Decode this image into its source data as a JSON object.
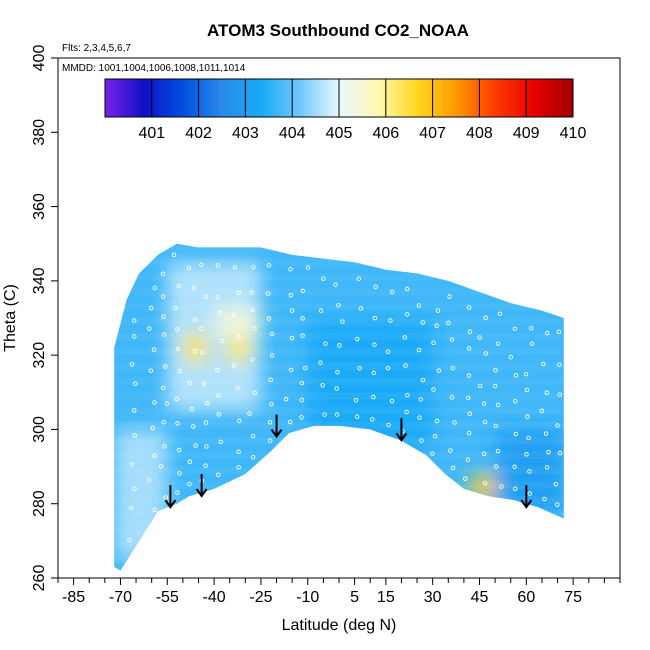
{
  "chart_data": {
    "type": "heatmap",
    "title": "ATOM3 Southbound CO2_NOAA",
    "annotations": [
      "Flts: 2,3,4,5,6,7",
      "MMDD: 1001,1004,1006,1008,1011,1014"
    ],
    "xlabel": "Latitude (deg N)",
    "ylabel": "Theta (C)",
    "xlim": [
      -90,
      90
    ],
    "ylim": [
      260,
      400
    ],
    "x_ticks": [
      -85,
      -70,
      -55,
      -40,
      -25,
      -10,
      5,
      15,
      30,
      45,
      60,
      75
    ],
    "y_ticks": [
      260,
      280,
      300,
      320,
      340,
      360,
      380,
      400
    ],
    "grid": false,
    "colorbar": {
      "position": "top",
      "range": [
        400,
        410
      ],
      "ticks": [
        401,
        402,
        403,
        404,
        405,
        406,
        407,
        408,
        409,
        410
      ],
      "colors": [
        "#7a22e8",
        "#1010c8",
        "#0050e0",
        "#2a8ae8",
        "#18aaf8",
        "#70c8f8",
        "#e8f8ff",
        "#fff8b0",
        "#ffd820",
        "#ff9a00",
        "#ff3a00",
        "#e80000",
        "#a00000"
      ]
    },
    "upper_boundary": [
      [
        -72,
        322
      ],
      [
        -68,
        335
      ],
      [
        -64,
        342
      ],
      [
        -58,
        347
      ],
      [
        -52,
        350
      ],
      [
        -45,
        349
      ],
      [
        -35,
        349
      ],
      [
        -25,
        349
      ],
      [
        -15,
        347
      ],
      [
        -5,
        346
      ],
      [
        5,
        345
      ],
      [
        15,
        343
      ],
      [
        25,
        342
      ],
      [
        35,
        340
      ],
      [
        45,
        337
      ],
      [
        55,
        334
      ],
      [
        65,
        332
      ],
      [
        72,
        330
      ]
    ],
    "lower_boundary": [
      [
        -72,
        263
      ],
      [
        -70,
        262
      ],
      [
        -64,
        270
      ],
      [
        -58,
        278
      ],
      [
        -52,
        280
      ],
      [
        -48,
        282
      ],
      [
        -40,
        284
      ],
      [
        -30,
        288
      ],
      [
        -22,
        294
      ],
      [
        -16,
        299
      ],
      [
        -8,
        301
      ],
      [
        0,
        301
      ],
      [
        10,
        300
      ],
      [
        20,
        297
      ],
      [
        28,
        293
      ],
      [
        34,
        288
      ],
      [
        40,
        284
      ],
      [
        48,
        282
      ],
      [
        56,
        281
      ],
      [
        64,
        279
      ],
      [
        72,
        276
      ]
    ],
    "field_regions": [
      {
        "lat": [
          -70,
          72
        ],
        "theta": [
          265,
          350
        ],
        "co2": 403.7
      },
      {
        "lat": [
          -55,
          -25
        ],
        "theta": [
          305,
          345
        ],
        "co2": 404.7
      },
      {
        "lat": [
          -10,
          30
        ],
        "theta": [
          295,
          330
        ],
        "co2": 403.3
      },
      {
        "lat": [
          -50,
          -42
        ],
        "theta": [
          318,
          326
        ],
        "co2": 406.4
      },
      {
        "lat": [
          -36,
          -28
        ],
        "theta": [
          318,
          325
        ],
        "co2": 406.3
      },
      {
        "lat": [
          -40,
          -25
        ],
        "theta": [
          325,
          333
        ],
        "co2": 405.4
      },
      {
        "lat": [
          42,
          52
        ],
        "theta": [
          281,
          288
        ],
        "co2": 406.8
      },
      {
        "lat": [
          -72,
          -55
        ],
        "theta": [
          265,
          300
        ],
        "co2": 404.6
      },
      {
        "lat": [
          50,
          72
        ],
        "theta": [
          278,
          300
        ],
        "co2": 403.0
      }
    ],
    "sample_markers": "white circles along flight tracks",
    "arrows": [
      {
        "lat": -54,
        "theta": 285
      },
      {
        "lat": -44,
        "theta": 288
      },
      {
        "lat": -20,
        "theta": 304
      },
      {
        "lat": 20,
        "theta": 303
      },
      {
        "lat": 60,
        "theta": 285
      }
    ]
  }
}
